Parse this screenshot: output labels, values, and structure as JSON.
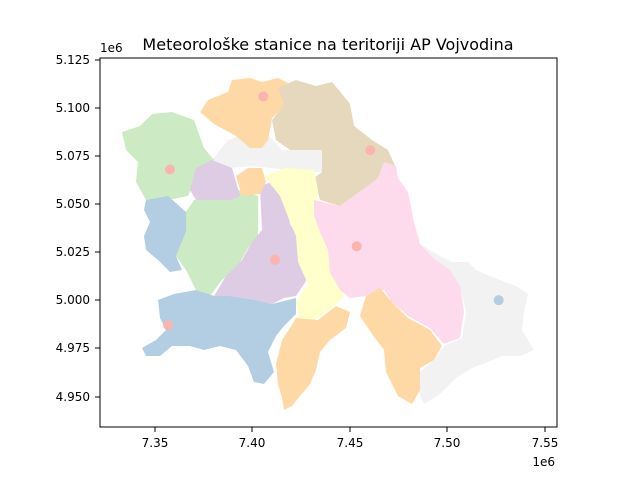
{
  "title": "Meteorološke stanice na teritoriji AP Vojvodina",
  "x_axis": {
    "ticks": [
      "7.35",
      "7.40",
      "7.45",
      "7.50",
      "7.55"
    ],
    "offset_label": "1e6"
  },
  "y_axis": {
    "ticks": [
      "5.125",
      "5.100",
      "5.075",
      "5.050",
      "5.025",
      "5.000",
      "4.975",
      "4.950"
    ],
    "offset_label": "1e6"
  },
  "chart_data": {
    "type": "scatter",
    "title": "Meteorološke stanice na teritoriji AP Vojvodina",
    "xlim": [
      7.32,
      7.555
    ],
    "ylim": [
      4.935,
      5.127
    ],
    "x_scale_label": "1e6",
    "y_scale_label": "1e6",
    "legend": "none",
    "grid": false,
    "region_palette": [
      "#b3cde3",
      "#ccebc5",
      "#decbe4",
      "#fed9a6",
      "#ffffcc",
      "#e5d8bd",
      "#fddaec",
      "#f2f2f2"
    ],
    "stations": [
      {
        "x": 7.404,
        "y": 5.107,
        "color": "#fbb4ae"
      },
      {
        "x": 7.459,
        "y": 5.079,
        "color": "#fbb4ae"
      },
      {
        "x": 7.356,
        "y": 5.069,
        "color": "#fbb4ae"
      },
      {
        "x": 7.452,
        "y": 5.029,
        "color": "#fbb4ae"
      },
      {
        "x": 7.41,
        "y": 5.022,
        "color": "#fbb4ae"
      },
      {
        "x": 7.525,
        "y": 5.001,
        "color": "#b3cde3"
      },
      {
        "x": 7.355,
        "y": 4.988,
        "color": "#fbb4ae"
      }
    ]
  }
}
